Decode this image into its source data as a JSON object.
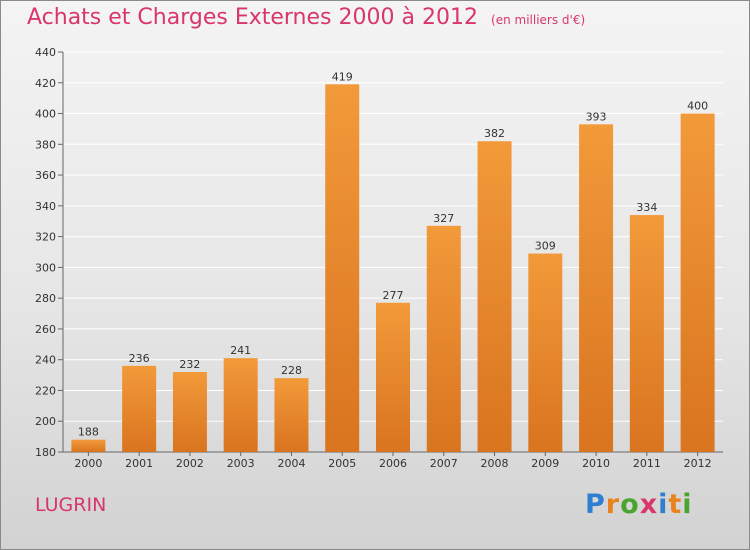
{
  "title": "Achats et Charges Externes 2000 à 2012",
  "unit_label": "(en milliers d'€)",
  "location": "LUGRIN",
  "brand": {
    "letters": [
      "P",
      "r",
      "o",
      "x",
      "i",
      "t",
      "i"
    ],
    "colors": [
      "#2f7fd1",
      "#e8821e",
      "#49a52f",
      "#d9366a",
      "#2f7fd1",
      "#e8821e",
      "#49a52f"
    ]
  },
  "colors": {
    "accent": "#d9366a",
    "bar": "#f29a3a",
    "bar_dark": "#d9741f"
  },
  "chart_data": {
    "type": "bar",
    "categories": [
      "2000",
      "2001",
      "2002",
      "2003",
      "2004",
      "2005",
      "2006",
      "2007",
      "2008",
      "2009",
      "2010",
      "2011",
      "2012"
    ],
    "values": [
      188,
      236,
      232,
      241,
      228,
      419,
      277,
      327,
      382,
      309,
      393,
      334,
      400
    ],
    "ylim": [
      180,
      440
    ],
    "yticks": [
      180,
      200,
      220,
      240,
      260,
      280,
      300,
      320,
      340,
      360,
      380,
      400,
      420,
      440
    ],
    "grid": true
  }
}
